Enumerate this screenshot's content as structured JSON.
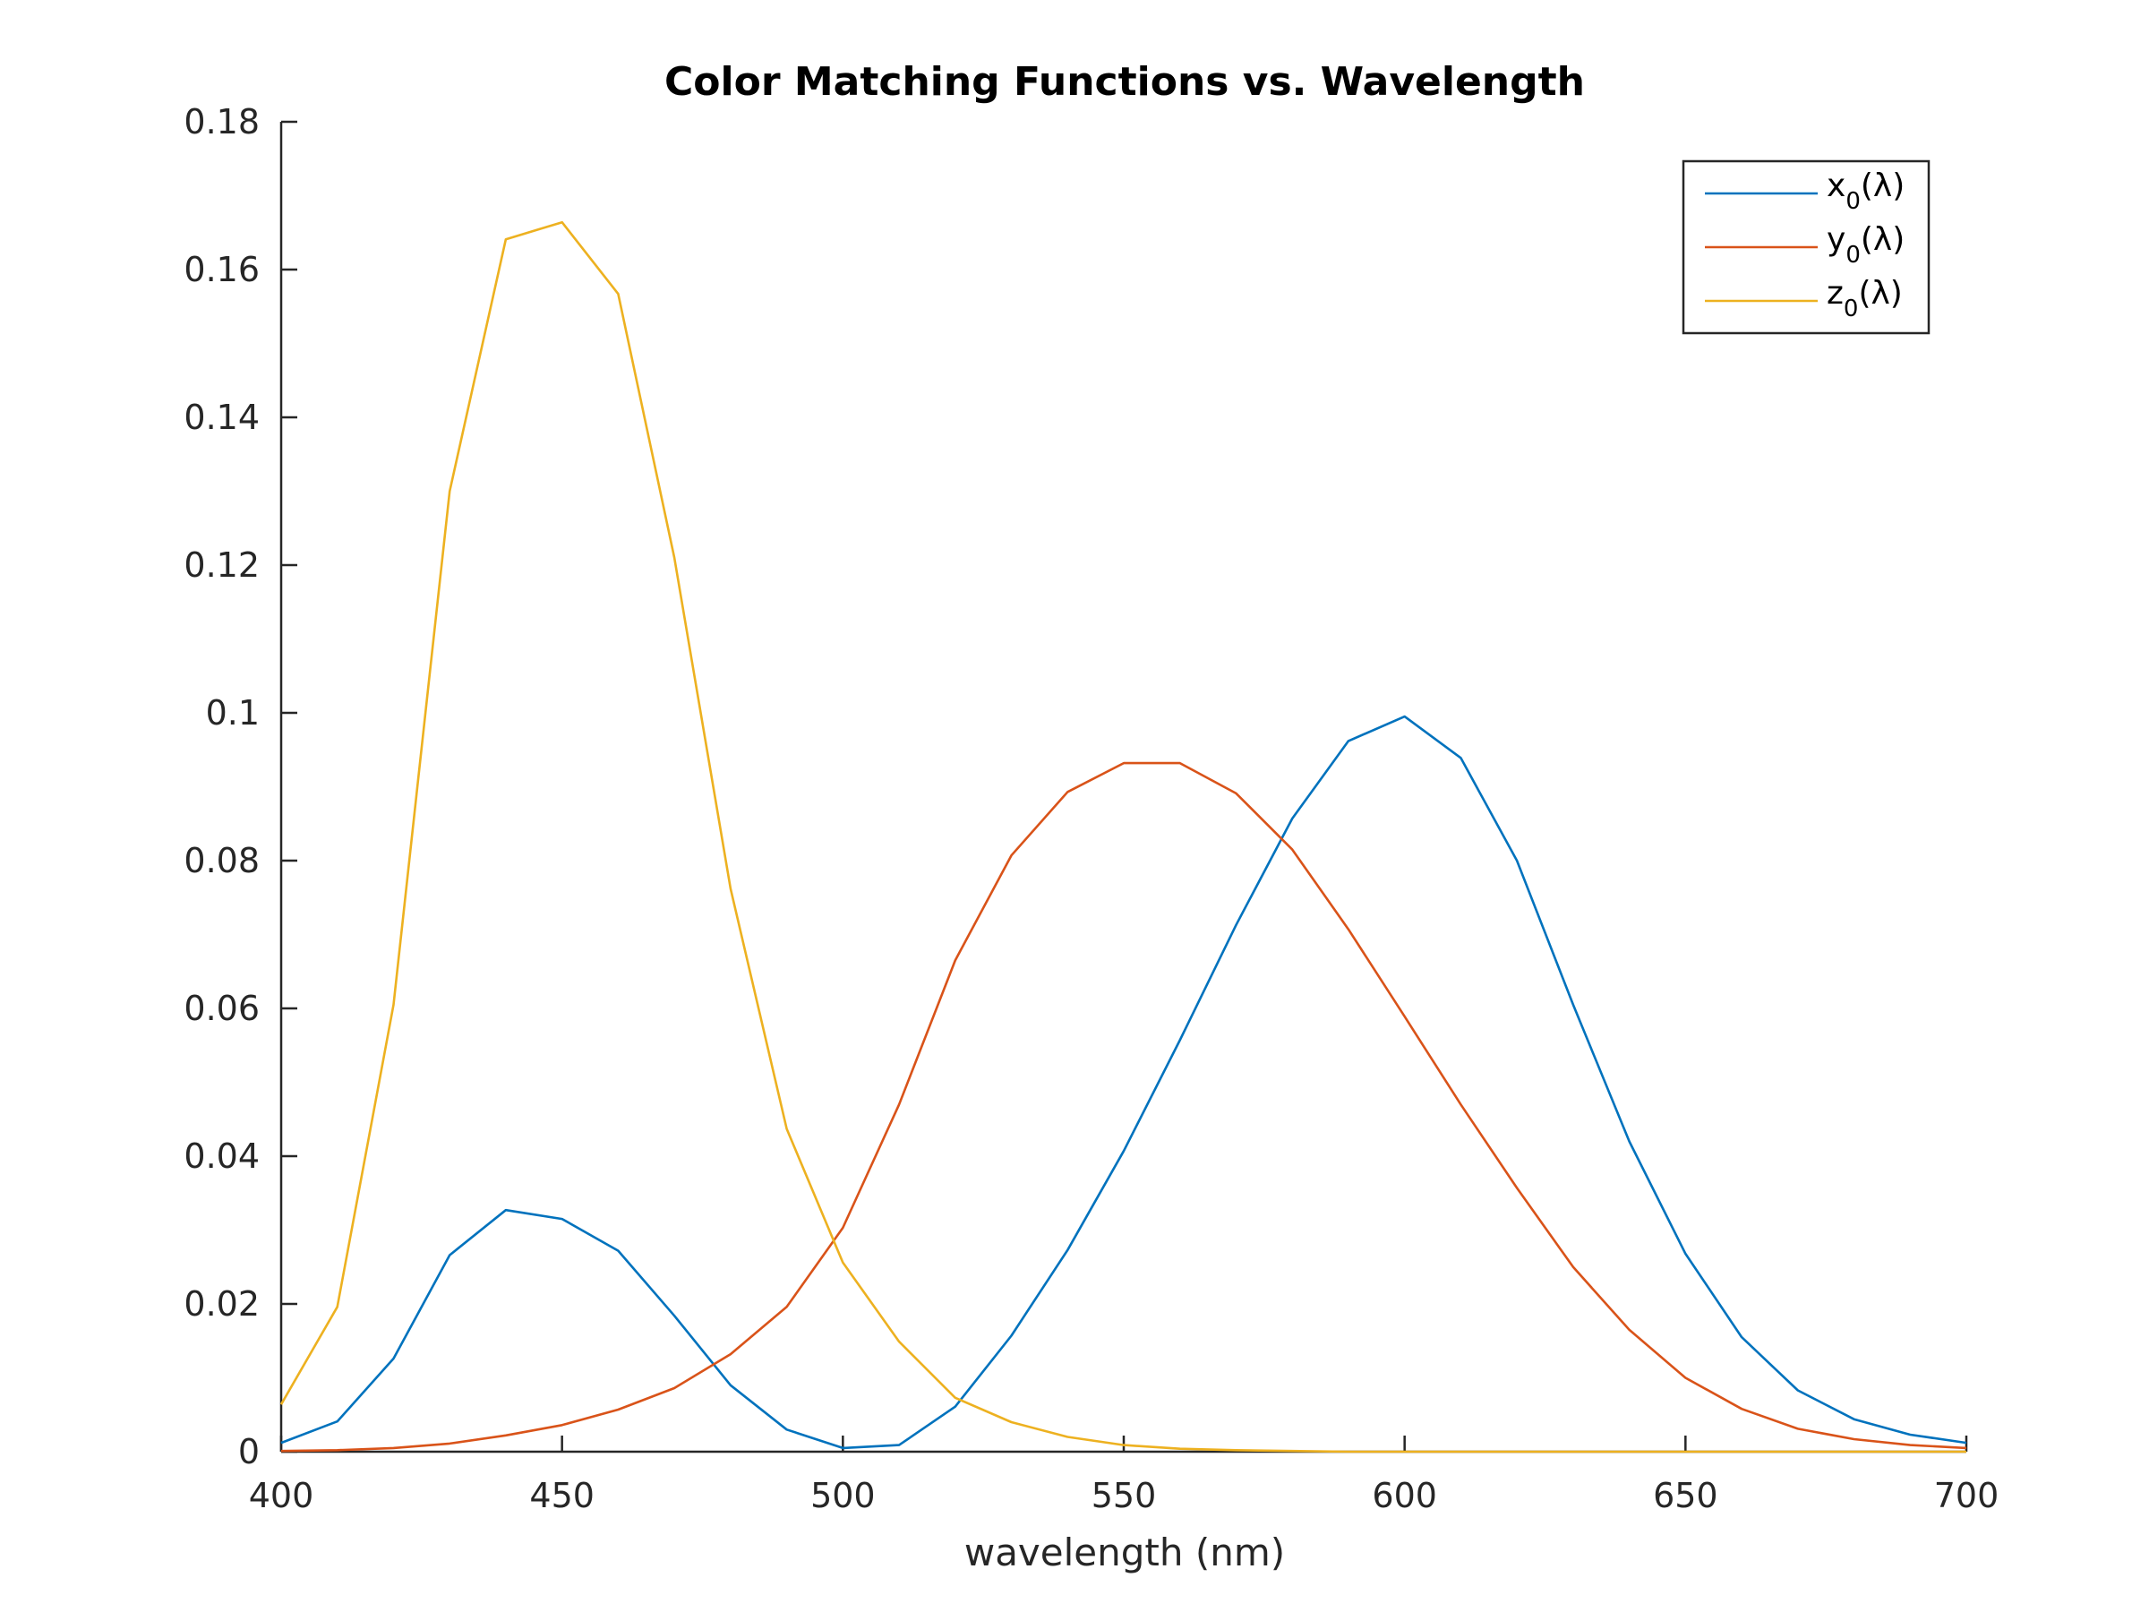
{
  "chart_data": {
    "type": "line",
    "title": "Color Matching Functions vs. Wavelength",
    "xlabel": "wavelength (nm)",
    "ylabel": "",
    "xlim": [
      400,
      700
    ],
    "ylim": [
      0,
      0.18
    ],
    "xticks": [
      400,
      450,
      500,
      550,
      600,
      650,
      700
    ],
    "xtick_labels": [
      "400",
      "450",
      "500",
      "550",
      "600",
      "650",
      "700"
    ],
    "yticks": [
      0,
      0.02,
      0.04,
      0.06,
      0.08,
      0.1,
      0.12,
      0.14,
      0.16,
      0.18
    ],
    "ytick_labels": [
      "0",
      "0.02",
      "0.04",
      "0.06",
      "0.08",
      "0.1",
      "0.12",
      "0.14",
      "0.16",
      "0.18"
    ],
    "grid": false,
    "legend_position": "top-right",
    "x": [
      400,
      410,
      420,
      430,
      440,
      450,
      460,
      470,
      480,
      490,
      500,
      510,
      520,
      530,
      540,
      550,
      560,
      570,
      580,
      590,
      600,
      610,
      620,
      630,
      640,
      650,
      660,
      670,
      680,
      690,
      700
    ],
    "series": [
      {
        "name": "x0(λ)",
        "label_main": "x",
        "label_sub": "0",
        "label_tail": "(λ)",
        "color": "#0072BD",
        "values": [
          0.0012,
          0.0041,
          0.0126,
          0.0266,
          0.0327,
          0.0315,
          0.0272,
          0.0184,
          0.009,
          0.003,
          0.0005,
          0.0009,
          0.0061,
          0.0157,
          0.0273,
          0.0407,
          0.0557,
          0.0713,
          0.0857,
          0.0962,
          0.0995,
          0.0939,
          0.08,
          0.0605,
          0.042,
          0.0268,
          0.0155,
          0.0083,
          0.0044,
          0.0023,
          0.0012
        ]
      },
      {
        "name": "y0(λ)",
        "label_main": "y",
        "label_sub": "0",
        "label_tail": "(λ)",
        "color": "#D95319",
        "values": [
          0.0001,
          0.0002,
          0.0005,
          0.0011,
          0.0022,
          0.0036,
          0.0057,
          0.0086,
          0.0132,
          0.0196,
          0.0303,
          0.047,
          0.0665,
          0.0807,
          0.0893,
          0.0932,
          0.0932,
          0.0891,
          0.0815,
          0.0707,
          0.0589,
          0.047,
          0.0357,
          0.025,
          0.0165,
          0.01,
          0.0058,
          0.0031,
          0.0017,
          0.0009,
          0.0005
        ]
      },
      {
        "name": "z0(λ)",
        "label_main": "z",
        "label_sub": "0",
        "label_tail": "(λ)",
        "color": "#EDB120",
        "values": [
          0.0064,
          0.0196,
          0.0605,
          0.13,
          0.1641,
          0.1664,
          0.1567,
          0.121,
          0.0762,
          0.0437,
          0.0256,
          0.0149,
          0.0073,
          0.004,
          0.002,
          0.0009,
          0.0004,
          0.0002,
          0.0001,
          0.0,
          0.0,
          0.0,
          0.0,
          0.0,
          0.0,
          0.0,
          0.0,
          0.0,
          0.0,
          0.0,
          0.0
        ]
      }
    ]
  }
}
